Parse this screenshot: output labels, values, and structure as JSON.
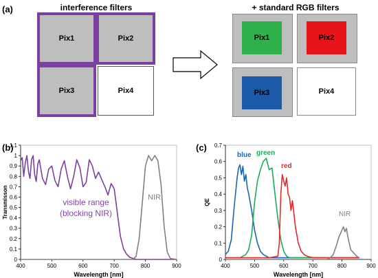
{
  "panel_a": {
    "label": "(a)",
    "left_title": "interference filters",
    "right_title": "+ standard RGB filters",
    "left_pixels": [
      {
        "label": "Pix1",
        "fill": "#bebebe",
        "border": "#7a3fa0"
      },
      {
        "label": "Pix2",
        "fill": "#bebebe",
        "border": "#7a3fa0"
      },
      {
        "label": "Pix3",
        "fill": "#bebebe",
        "border": "#7a3fa0"
      },
      {
        "label": "Pix4",
        "fill": "#ffffff",
        "border": "#555555"
      }
    ],
    "right_pixels": [
      {
        "label": "Pix1",
        "outer": "#bebebe",
        "inner": "#2fb04a"
      },
      {
        "label": "Pix2",
        "outer": "#bebebe",
        "inner": "#e8141b"
      },
      {
        "label": "Pix3",
        "outer": "#bebebe",
        "inner": "#1a5aa8"
      },
      {
        "label": "Pix4",
        "outer": "#ffffff",
        "inner": "#ffffff"
      }
    ]
  },
  "chart_data": [
    {
      "panel": "(b)",
      "type": "line",
      "xlabel": "Wavelength [nm]",
      "ylabel": "Transmisson",
      "xlim": [
        400,
        900
      ],
      "ylim": [
        0,
        1.1
      ],
      "xticks": [
        "400",
        "500",
        "600",
        "700",
        "800",
        "900"
      ],
      "yticks": [
        "0",
        "0.1",
        "0.2",
        "0.3",
        "0.4",
        "0.5",
        "0.6",
        "0.7",
        "0.8",
        "0.9",
        "1",
        "1.1"
      ],
      "annotations": [
        {
          "text": "visible range",
          "color": "#8a3fa8"
        },
        {
          "text": "(blocking NIR)",
          "color": "#8a3fa8"
        },
        {
          "text": "NIR",
          "color": "#808080"
        }
      ],
      "series": [
        {
          "color": "#7b3fa0",
          "x": [
            400,
            405,
            410,
            415,
            420,
            425,
            430,
            435,
            440,
            445,
            450,
            455,
            460,
            470,
            480,
            490,
            500,
            510,
            520,
            530,
            540,
            550,
            560,
            570,
            580,
            590,
            600,
            610,
            620,
            630,
            640,
            650,
            660,
            670,
            680,
            690,
            700,
            710,
            720,
            730,
            740,
            750,
            760,
            770,
            780,
            790,
            800,
            850,
            900
          ],
          "y": [
            0.95,
            0.98,
            0.8,
            0.93,
            1.0,
            0.85,
            0.78,
            0.96,
            1.0,
            0.82,
            0.75,
            0.92,
            0.96,
            0.78,
            0.72,
            0.87,
            0.9,
            0.76,
            0.7,
            0.87,
            0.95,
            0.8,
            0.68,
            0.8,
            0.96,
            0.88,
            0.7,
            0.74,
            0.96,
            0.9,
            0.78,
            0.84,
            0.77,
            0.7,
            0.62,
            0.73,
            0.68,
            0.45,
            0.22,
            0.1,
            0.05,
            0.02,
            0.01,
            0,
            0,
            0,
            0,
            0,
            0
          ]
        },
        {
          "color": "#808080",
          "x": [
            400,
            760,
            770,
            780,
            790,
            800,
            810,
            820,
            830,
            840,
            850,
            860,
            870,
            880,
            900
          ],
          "y": [
            0,
            0,
            0.03,
            0.2,
            0.55,
            0.9,
            1.0,
            0.95,
            1.0,
            0.95,
            0.72,
            0.32,
            0.07,
            0.01,
            0
          ]
        }
      ]
    },
    {
      "panel": "(c)",
      "type": "line",
      "xlabel": "Wavelength [nm]",
      "ylabel": "QE",
      "xlim": [
        400,
        900
      ],
      "ylim": [
        0,
        0.7
      ],
      "xticks": [
        "400",
        "500",
        "600",
        "700",
        "800",
        "900"
      ],
      "yticks": [
        "0",
        "0.1",
        "0.2",
        "0.3",
        "0.4",
        "0.5",
        "0.6",
        "0.7"
      ],
      "annotations": [
        {
          "text": "blue",
          "color": "#1a64b4"
        },
        {
          "text": "green",
          "color": "#1aaa5a"
        },
        {
          "text": "red",
          "color": "#e62828"
        },
        {
          "text": "NIR",
          "color": "#808080"
        }
      ],
      "series": [
        {
          "color": "#1a64b4",
          "x": [
            400,
            410,
            420,
            430,
            440,
            445,
            450,
            455,
            460,
            465,
            470,
            475,
            480,
            490,
            500,
            510,
            520,
            530,
            540,
            550,
            600,
            650,
            700,
            750,
            800,
            850,
            860
          ],
          "y": [
            0.03,
            0.05,
            0.12,
            0.32,
            0.5,
            0.56,
            0.58,
            0.52,
            0.57,
            0.48,
            0.52,
            0.44,
            0.4,
            0.3,
            0.18,
            0.1,
            0.05,
            0.03,
            0.02,
            0.01,
            0.01,
            0.01,
            0.01,
            0.01,
            0.01,
            0.01,
            0.01
          ]
        },
        {
          "color": "#1aaa5a",
          "x": [
            400,
            450,
            460,
            470,
            480,
            490,
            500,
            510,
            520,
            530,
            540,
            550,
            560,
            570,
            580,
            590,
            600,
            610,
            620,
            650,
            700,
            750,
            800,
            850,
            860
          ],
          "y": [
            0.01,
            0.01,
            0.02,
            0.03,
            0.06,
            0.15,
            0.35,
            0.48,
            0.55,
            0.6,
            0.62,
            0.55,
            0.56,
            0.4,
            0.25,
            0.12,
            0.05,
            0.02,
            0.01,
            0.01,
            0.01,
            0.01,
            0.01,
            0.01,
            0.01
          ]
        },
        {
          "color": "#e62828",
          "x": [
            400,
            550,
            580,
            585,
            590,
            595,
            600,
            605,
            610,
            615,
            620,
            625,
            630,
            640,
            650,
            660,
            670,
            680,
            700,
            750,
            800,
            850,
            860
          ],
          "y": [
            0.01,
            0.01,
            0.02,
            0.1,
            0.4,
            0.52,
            0.48,
            0.45,
            0.5,
            0.4,
            0.38,
            0.3,
            0.36,
            0.2,
            0.1,
            0.05,
            0.03,
            0.02,
            0.01,
            0.01,
            0.01,
            0.01,
            0.01
          ]
        },
        {
          "color": "#808080",
          "x": [
            400,
            750,
            760,
            770,
            780,
            790,
            800,
            805,
            810,
            815,
            820,
            830,
            840,
            850,
            860
          ],
          "y": [
            0,
            0,
            0.01,
            0.03,
            0.08,
            0.14,
            0.18,
            0.2,
            0.17,
            0.19,
            0.14,
            0.06,
            0.04,
            0.02,
            0.01
          ]
        }
      ]
    }
  ]
}
